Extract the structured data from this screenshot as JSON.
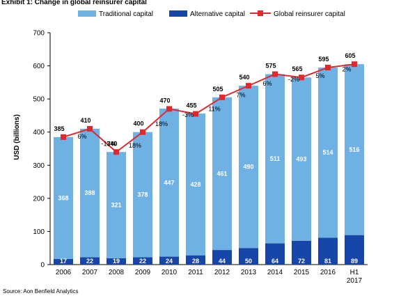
{
  "header": {
    "title": "Exhibit 1: Change in global reinsurer capital"
  },
  "footer": {
    "source": "Source: Aon Benfield Analytics"
  },
  "colors": {
    "traditional": "#6fb1e2",
    "alternative": "#1846a8",
    "global_line": "#e0282e",
    "grid": "#000000",
    "axis_text": "#000000"
  },
  "chart_data": {
    "type": "bar",
    "stacked": true,
    "categories": [
      "2006",
      "2007",
      "2008",
      "2009",
      "2010",
      "2011",
      "2012",
      "2013",
      "2014",
      "2015",
      "2016",
      "H1 2017"
    ],
    "series": [
      {
        "name": "Traditional capital",
        "values": [
          368,
          388,
          321,
          378,
          447,
          428,
          461,
          490,
          511,
          493,
          514,
          516
        ]
      },
      {
        "name": "Alternative capital",
        "values": [
          17,
          22,
          19,
          22,
          24,
          28,
          44,
          50,
          64,
          72,
          81,
          89
        ]
      }
    ],
    "line_series": {
      "name": "Global reinsurer capital",
      "values": [
        385,
        410,
        340,
        400,
        470,
        455,
        505,
        540,
        575,
        565,
        595,
        605
      ],
      "change_labels": [
        "6%",
        "-17%",
        "18%",
        "18%",
        "-3%",
        "11%",
        "7%",
        "6%",
        "-2%",
        "5%",
        "2%"
      ]
    },
    "ylabel": "USD (billions)",
    "ylim": [
      0,
      700
    ],
    "yticks": [
      0,
      100,
      200,
      300,
      400,
      500,
      600,
      700
    ],
    "legend_position": "top",
    "grid": false
  }
}
